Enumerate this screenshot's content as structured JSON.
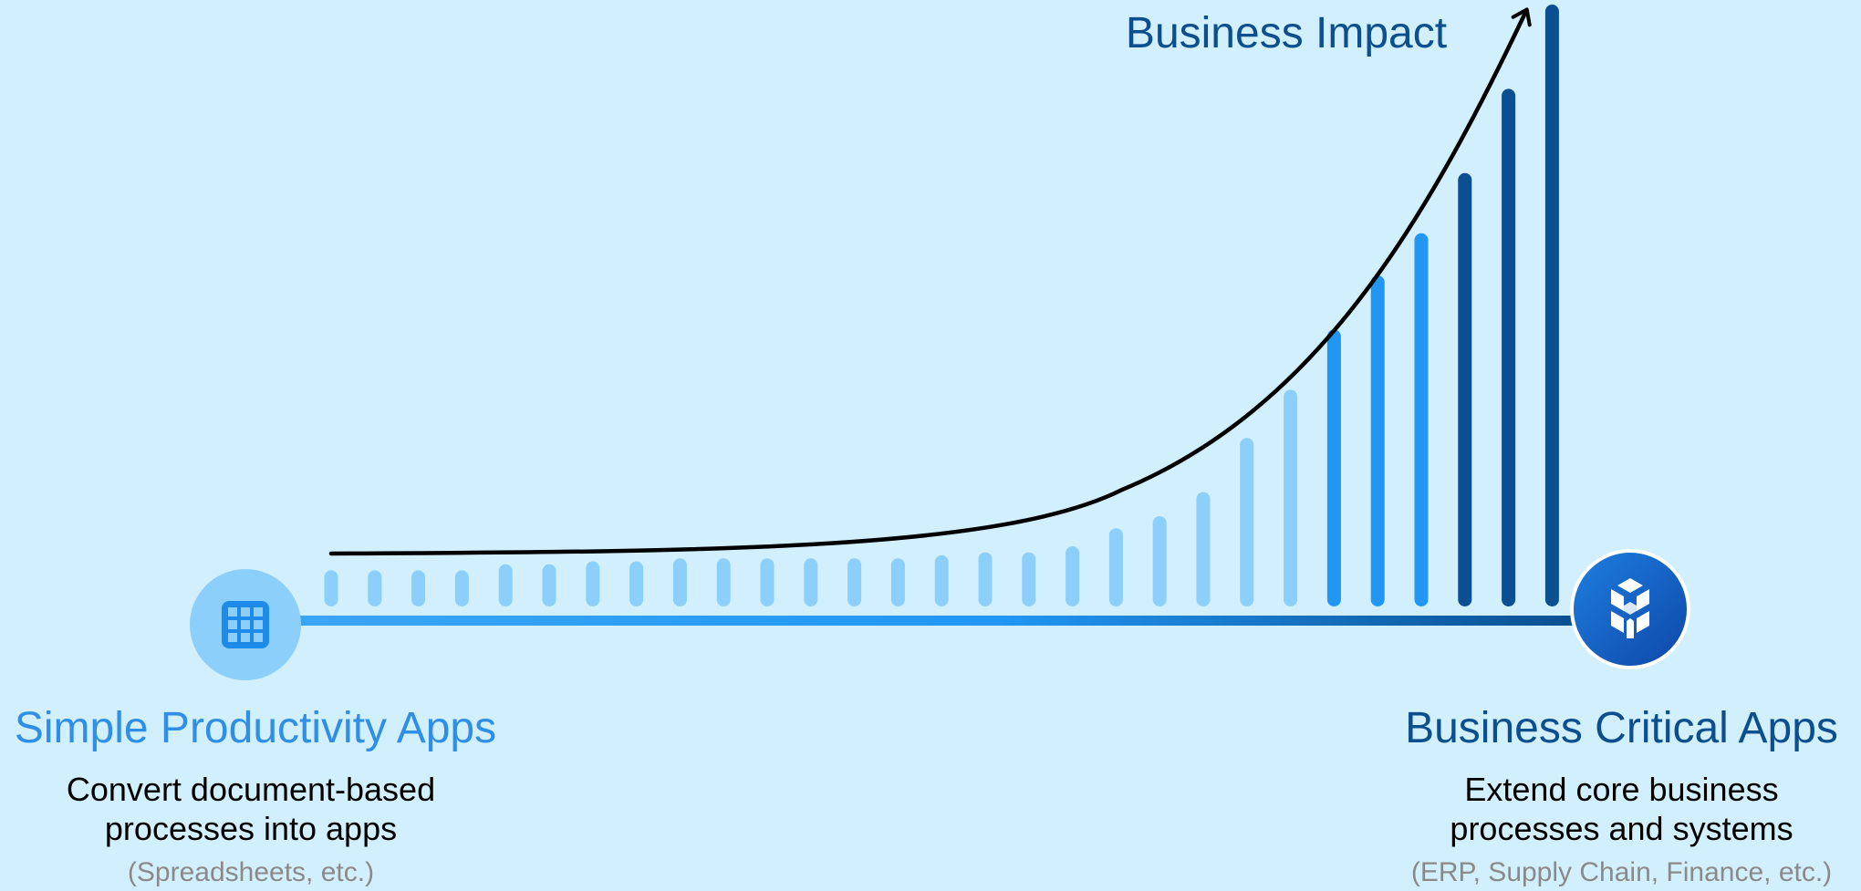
{
  "impact_label": "Business Impact",
  "left": {
    "title": "Simple Productivity Apps",
    "desc_line1": "Convert document-based",
    "desc_line2": "processes into apps",
    "note": "(Spreadsheets, etc.)",
    "icon": "grid-icon"
  },
  "right": {
    "title": "Business Critical Apps",
    "desc_line1": "Extend core business",
    "desc_line2": "processes and systems",
    "note": "(ERP, Supply Chain, Finance, etc.)",
    "icon": "cube-cluster-icon"
  },
  "colors": {
    "background": "#d2effd",
    "light_blue": "#8ccffa",
    "mid_blue": "#2196f3",
    "dark_blue": "#0a4f91",
    "curve": "#000000"
  },
  "bars": {
    "relative_heights": [
      0.06,
      0.06,
      0.06,
      0.06,
      0.07,
      0.07,
      0.075,
      0.075,
      0.08,
      0.08,
      0.08,
      0.08,
      0.08,
      0.08,
      0.085,
      0.09,
      0.09,
      0.1,
      0.13,
      0.15,
      0.19,
      0.28,
      0.36,
      0.46,
      0.55,
      0.62,
      0.72,
      0.86,
      1.0
    ],
    "tones": [
      "light",
      "light",
      "light",
      "light",
      "light",
      "light",
      "light",
      "light",
      "light",
      "light",
      "light",
      "light",
      "light",
      "light",
      "light",
      "light",
      "light",
      "light",
      "light",
      "light",
      "light",
      "light",
      "light",
      "mid",
      "mid",
      "mid",
      "dark",
      "dark",
      "dark"
    ]
  }
}
